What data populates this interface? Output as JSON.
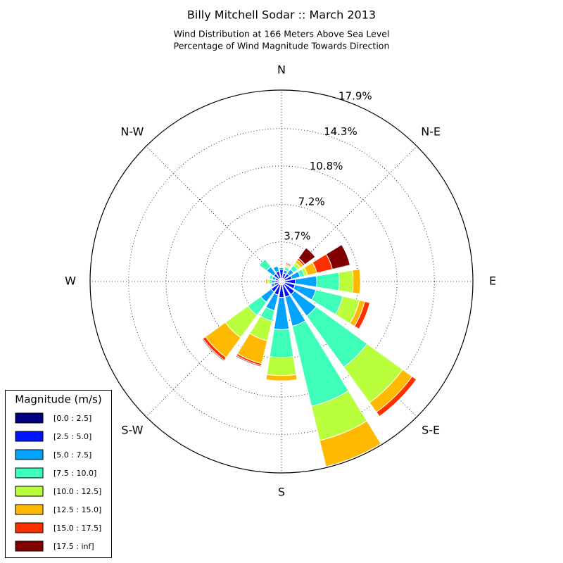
{
  "chart_data": {
    "type": "windrose",
    "title": "Billy Mitchell Sodar :: March 2013",
    "subtitle": [
      "Wind Distribution at 166 Meters Above Sea Level",
      "Percentage of Wind Magnitude Towards Direction"
    ],
    "categories": [
      "N",
      null,
      "N-E",
      null,
      "E",
      null,
      "S-E",
      null,
      "S",
      null,
      "S-W",
      null,
      "W",
      null,
      "N-W",
      null
    ],
    "rlim": [
      0,
      17.9
    ],
    "rticks": [
      {
        "value": 3.7,
        "label": "3.7%"
      },
      {
        "value": 7.2,
        "label": "7.2%"
      },
      {
        "value": 10.8,
        "label": "10.8%"
      },
      {
        "value": 14.3,
        "label": "14.3%"
      },
      {
        "value": 17.9,
        "label": "17.9%"
      }
    ],
    "grid": true,
    "legend_title": "Magnitude (m/s)",
    "legend_position": "lower left",
    "series": [
      {
        "name": "[0.0 : 2.5]",
        "color": "#000080",
        "values": [
          0.3,
          0.3,
          0.3,
          0.3,
          0.3,
          0.3,
          0.3,
          0.3,
          0.3,
          0.3,
          0.3,
          0.2,
          0.2,
          0.2,
          0.3,
          0.3
        ]
      },
      {
        "name": "[2.5 : 5.0]",
        "color": "#0014ff",
        "values": [
          0.8,
          0.5,
          0.6,
          0.7,
          1.0,
          1.0,
          1.2,
          1.2,
          1.2,
          1.0,
          0.9,
          0.5,
          0.4,
          0.4,
          0.6,
          0.7
        ]
      },
      {
        "name": "[5.0 : 7.5]",
        "color": "#00a4ff",
        "values": [
          0.2,
          0.3,
          0.5,
          0.8,
          2.0,
          2.0,
          2.5,
          2.8,
          3.0,
          1.5,
          1.2,
          0.3,
          0.3,
          0.3,
          0.8,
          0.5
        ]
      },
      {
        "name": "[7.5 : 10.0]",
        "color": "#3dffb9",
        "values": [
          0,
          0.3,
          0.5,
          0.4,
          2.1,
          2.6,
          5.9,
          7.7,
          2.6,
          1.0,
          1.5,
          0.1,
          0.2,
          0.3,
          0.9,
          0
        ]
      },
      {
        "name": "[10.0 : 12.5]",
        "color": "#b9ff3d",
        "values": [
          0,
          0.1,
          0.3,
          0.3,
          1.3,
          1.6,
          4.1,
          3.3,
          1.7,
          1.9,
          2.6,
          0,
          0.2,
          0,
          0,
          0
        ]
      },
      {
        "name": "[12.5 : 15.0]",
        "color": "#ffb900",
        "values": [
          0,
          0.1,
          0.3,
          0.9,
          0.7,
          0.5,
          1.1,
          2.5,
          0.5,
          2.2,
          2.3,
          0,
          0.2,
          0,
          0,
          0
        ]
      },
      {
        "name": "[15.0 : 17.5]",
        "color": "#ff3000",
        "values": [
          0,
          0.1,
          0.2,
          1.5,
          0,
          0.5,
          0.5,
          0,
          0,
          0.2,
          0.3,
          0,
          0,
          0,
          0,
          0
        ]
      },
      {
        "name": "[17.5 : inf]",
        "color": "#800000",
        "values": [
          0,
          0.1,
          1.2,
          1.7,
          0,
          0,
          0,
          0,
          0,
          0.1,
          0.1,
          0,
          0,
          0,
          0,
          0
        ]
      }
    ]
  }
}
